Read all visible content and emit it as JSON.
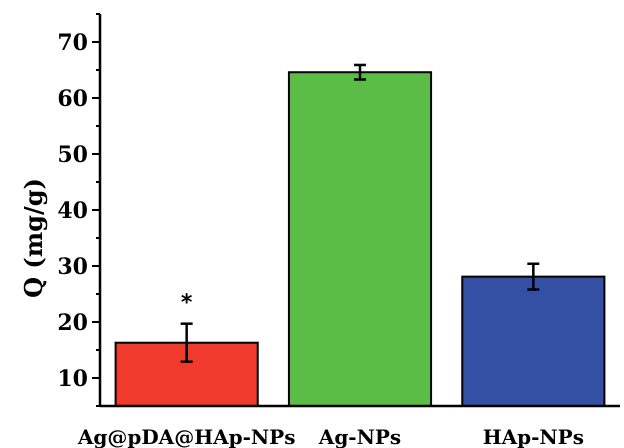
{
  "chart_data": {
    "type": "bar",
    "categories": [
      "Ag@pDA@HAp-NPs",
      "Ag-NPs",
      "HAp-NPs"
    ],
    "values": [
      16.3,
      64.6,
      28.1
    ],
    "errors": [
      3.4,
      1.3,
      2.3
    ],
    "colors": [
      "#f03a2b",
      "#5cbd46",
      "#3450a4"
    ],
    "annotations": [
      {
        "category_index": 0,
        "text": "*"
      }
    ],
    "ylabel": "Q (mg/g)",
    "xlabel": "",
    "ylim": [
      5,
      75
    ],
    "yticks": [
      10,
      20,
      30,
      40,
      50,
      60,
      70
    ],
    "grid": false
  }
}
